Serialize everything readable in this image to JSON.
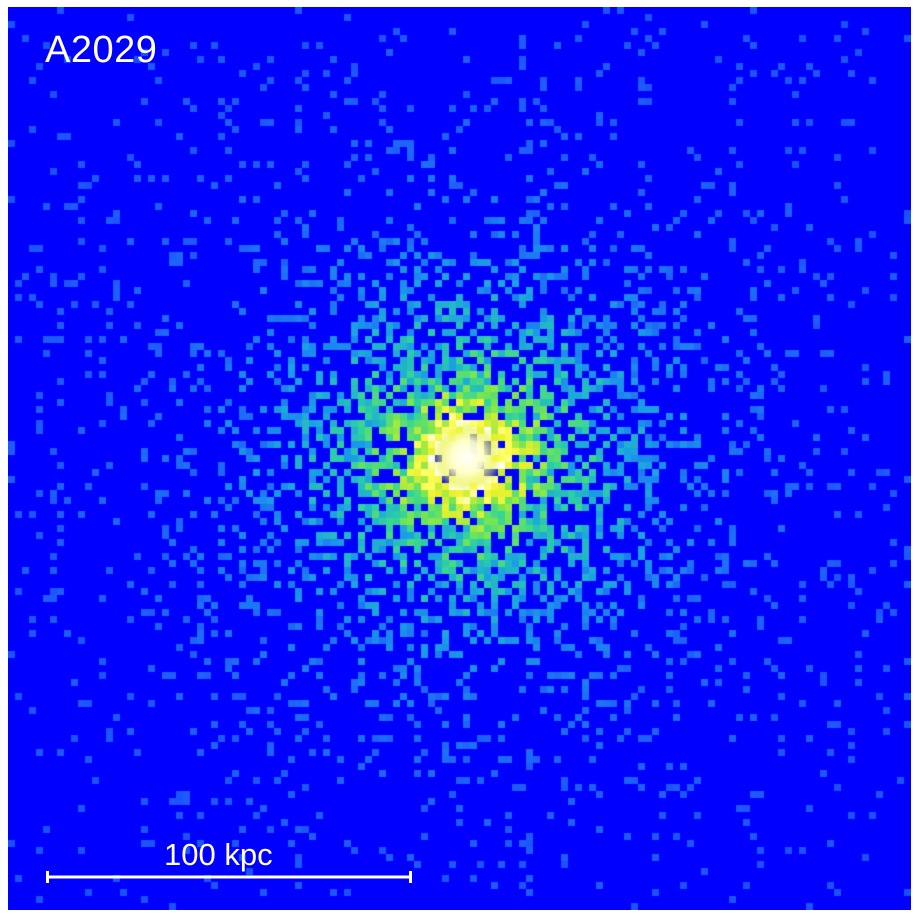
{
  "image": {
    "object_label": "A2029",
    "scale_bar_label": "100 kpc",
    "colors": {
      "background": "#0000ff",
      "text": "#ffffff",
      "frame": "#ffffff",
      "colormap": [
        "#0000ff",
        "#1e5aff",
        "#1a9fe6",
        "#2dd2a0",
        "#78e650",
        "#e6f02d",
        "#ffff5a",
        "#ffffff"
      ]
    }
  }
}
